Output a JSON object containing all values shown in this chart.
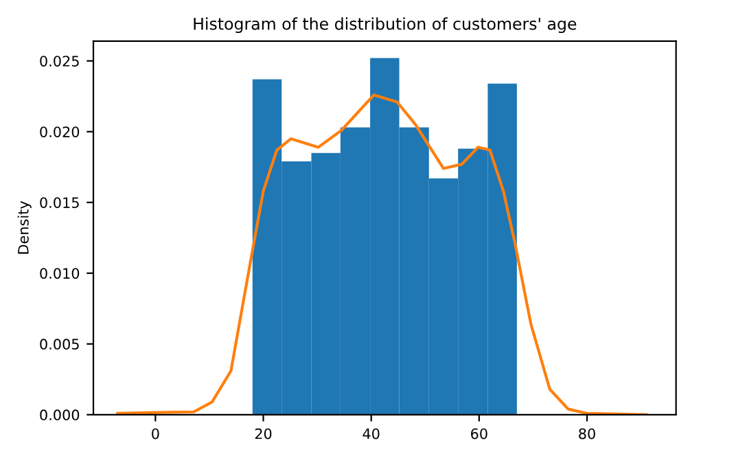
{
  "chart_data": {
    "type": "histogram",
    "title": "Histogram of the distribution of customers' age",
    "ylabel": "Density",
    "bins": [
      18,
      23.4,
      28.9,
      34.3,
      39.8,
      45.2,
      50.7,
      56.1,
      61.6,
      67
    ],
    "values": [
      0.0237,
      0.0179,
      0.0185,
      0.0203,
      0.0252,
      0.0203,
      0.0167,
      0.0188,
      0.0234
    ],
    "color": "#1f77b4",
    "series": [
      {
        "type": "line",
        "color": "#ff7f0e",
        "x": [
          -7,
          7.1,
          10.5,
          14,
          17.8,
          20,
          22.5,
          25.1,
          30.2,
          34.5,
          40.5,
          44.8,
          48.2,
          53.4,
          56.8,
          59.8,
          62,
          64.5,
          66.6,
          69.6,
          73.1,
          76.5,
          79.9,
          91
        ],
        "values": [
          0.0001,
          0.0002,
          0.0009,
          0.0031,
          0.0112,
          0.0158,
          0.0187,
          0.0195,
          0.0189,
          0.0201,
          0.0226,
          0.0221,
          0.0205,
          0.0174,
          0.0177,
          0.0189,
          0.0187,
          0.0158,
          0.0122,
          0.0064,
          0.0018,
          0.0004,
          0.0001,
          0
        ]
      }
    ],
    "xlim": [
      -11.5,
      96.5
    ],
    "xticks": [
      0,
      20,
      40,
      60,
      80
    ],
    "ylim": [
      0,
      0.0264
    ],
    "yticks": [
      {
        "value": 0,
        "label": "0.000"
      },
      {
        "value": 0.005,
        "label": "0.005"
      },
      {
        "value": 0.01,
        "label": "0.010"
      },
      {
        "value": 0.015,
        "label": "0.015"
      },
      {
        "value": 0.02,
        "label": "0.020"
      },
      {
        "value": 0.025,
        "label": "0.025"
      }
    ],
    "grid": false
  }
}
